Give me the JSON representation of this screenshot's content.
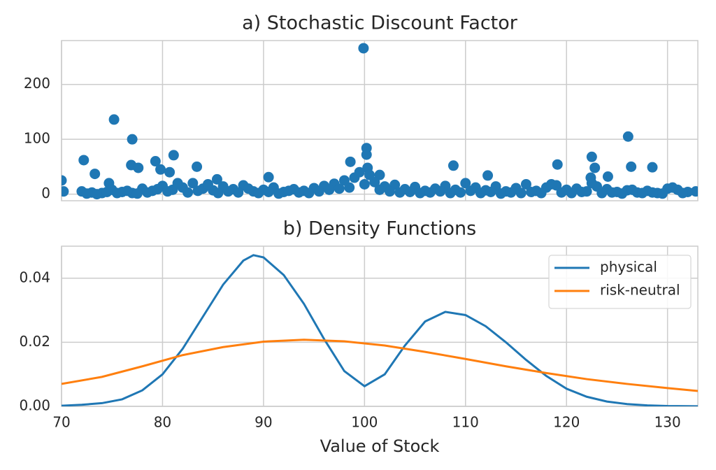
{
  "chart_data": [
    {
      "type": "scatter",
      "title": "a) Stochastic Discount Factor",
      "color": "#1f77b4",
      "grid": true,
      "xlim": [
        70,
        133
      ],
      "ylim": [
        -12,
        280
      ],
      "xticks": [
        70,
        80,
        90,
        100,
        110,
        120,
        130
      ],
      "yticks": [
        0,
        100,
        200
      ],
      "x": [
        70,
        70.2,
        72.2,
        73.3,
        75.2,
        74.7,
        77,
        76.9,
        77.6,
        79.3,
        79.8,
        80.7,
        81.1,
        83.4,
        85.4,
        90.5,
        99.9,
        98.6,
        100.2,
        100.2,
        100.3,
        101.5,
        108.8,
        112.2,
        119.1,
        122.5,
        122.8,
        122.4,
        124.1,
        126.1,
        126.4,
        128.5,
        132.8,
        72,
        73,
        74,
        75,
        76,
        77,
        78,
        79,
        80,
        81,
        82,
        83,
        84,
        85,
        86,
        87,
        88,
        89,
        90,
        91,
        92,
        93,
        94,
        95,
        96,
        97,
        98,
        99,
        100,
        101,
        102,
        103,
        104,
        105,
        106,
        107,
        108,
        109,
        110,
        111,
        112,
        113,
        114,
        115,
        116,
        117,
        118,
        119,
        120,
        121,
        122,
        123,
        124,
        125,
        126,
        127,
        128,
        129,
        130,
        131,
        132,
        72.5,
        73.5,
        74.5,
        75.5,
        76.5,
        77.5,
        78.5,
        79.5,
        80.5,
        81.5,
        82.5,
        83.5,
        84.5,
        85.5,
        86.5,
        87.5,
        88.5,
        89.5,
        90.5,
        91.5,
        92.5,
        93.5,
        94.5,
        95.5,
        96.5,
        97.5,
        98.5,
        99.5,
        100.5,
        101.5,
        102.5,
        103.5,
        104.5,
        105.5,
        106.5,
        107.5,
        108.5,
        109.5,
        110.5,
        111.5,
        112.5,
        113.5,
        114.5,
        115.5,
        116.5,
        117.5,
        118.5,
        119.5,
        120.5,
        121.5,
        122.5,
        123.5,
        124.5,
        125.5,
        126.5,
        127.5,
        128.5,
        129.5,
        130.5,
        131.5
      ],
      "values": [
        25,
        5,
        62,
        37,
        136,
        20,
        100,
        53,
        48,
        60,
        45,
        40,
        71,
        50,
        27,
        31,
        266,
        59,
        84,
        72,
        48,
        35,
        52,
        34,
        54,
        68,
        48,
        30,
        32,
        105,
        50,
        49,
        5,
        5,
        3,
        2,
        8,
        4,
        2,
        10,
        6,
        15,
        8,
        12,
        20,
        10,
        7,
        14,
        9,
        16,
        5,
        8,
        12,
        4,
        9,
        6,
        11,
        15,
        19,
        25,
        30,
        18,
        22,
        14,
        17,
        9,
        13,
        6,
        10,
        15,
        8,
        20,
        12,
        7,
        14,
        5,
        11,
        18,
        6,
        12,
        16,
        8,
        10,
        5,
        14,
        9,
        4,
        7,
        3,
        6,
        2,
        10,
        8,
        4,
        1,
        0,
        4,
        2,
        6,
        1,
        3,
        9,
        5,
        20,
        3,
        6,
        18,
        2,
        5,
        3,
        10,
        2,
        4,
        1,
        6,
        3,
        2,
        5,
        8,
        10,
        12,
        40,
        35,
        8,
        5,
        3,
        4,
        2,
        3,
        5,
        2,
        3,
        6,
        2,
        4,
        1,
        3,
        2,
        4,
        2,
        18,
        3,
        2,
        4,
        20,
        2,
        3,
        1,
        8,
        2,
        3,
        1,
        12,
        2
      ]
    },
    {
      "type": "line",
      "title": "b) Density Functions",
      "xlabel": "Value of Stock",
      "grid": true,
      "legend": "upper right",
      "xlim": [
        70,
        133
      ],
      "ylim": [
        0,
        0.05
      ],
      "xticks": [
        70,
        80,
        90,
        100,
        110,
        120,
        130
      ],
      "yticks": [
        {
          "value": 0,
          "label": "0.00"
        },
        {
          "value": 0.02,
          "label": "0.02"
        },
        {
          "value": 0.04,
          "label": "0.04"
        }
      ],
      "series": [
        {
          "name": "physical",
          "color": "#1f77b4",
          "x": [
            70,
            72,
            74,
            76,
            78,
            80,
            82,
            84,
            86,
            88,
            89,
            90,
            92,
            94,
            96,
            98,
            100,
            102,
            104,
            106,
            108,
            110,
            112,
            114,
            116,
            118,
            120,
            122,
            124,
            126,
            128,
            130,
            133
          ],
          "values": [
            0.0002,
            0.0005,
            0.001,
            0.0022,
            0.005,
            0.01,
            0.018,
            0.028,
            0.038,
            0.0455,
            0.0472,
            0.0465,
            0.041,
            0.032,
            0.021,
            0.011,
            0.0063,
            0.01,
            0.019,
            0.0265,
            0.0295,
            0.0285,
            0.025,
            0.02,
            0.0145,
            0.0095,
            0.0055,
            0.003,
            0.0015,
            0.0007,
            0.0003,
            0.0001,
            3e-05
          ]
        },
        {
          "name": "risk-neutral",
          "color": "#ff7f0e",
          "x": [
            70,
            74,
            78,
            82,
            86,
            90,
            94,
            98,
            102,
            106,
            110,
            114,
            118,
            122,
            126,
            130,
            133
          ],
          "values": [
            0.007,
            0.0092,
            0.0125,
            0.016,
            0.0185,
            0.0202,
            0.0208,
            0.0203,
            0.019,
            0.017,
            0.0148,
            0.0125,
            0.0104,
            0.0085,
            0.007,
            0.0057,
            0.0048
          ]
        }
      ]
    }
  ]
}
